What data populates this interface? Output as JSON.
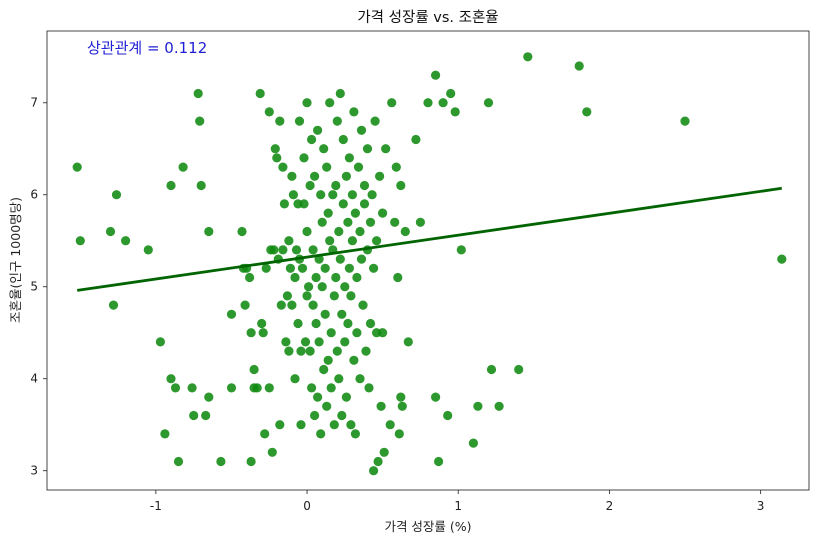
{
  "chart_data": {
    "type": "scatter",
    "title": "가격 성장률 vs. 조혼율",
    "xlabel": "가격 성장률 (%)",
    "ylabel": "조혼율(인구 1000명당)",
    "xlim": [
      -1.72,
      3.32
    ],
    "ylim": [
      2.79,
      7.78
    ],
    "xticks": [
      -1,
      0,
      1,
      2,
      3
    ],
    "yticks": [
      3,
      4,
      5,
      6,
      7
    ],
    "grid": false,
    "annotation": {
      "text": "상관관계 = 0.112",
      "color": "#1f1fd6",
      "position": "top-left"
    },
    "point_color": "#108a10",
    "trend_color": "#006400",
    "trend": {
      "x": [
        -1.52,
        3.14
      ],
      "y": [
        4.96,
        6.07
      ]
    },
    "points": [
      [
        -1.52,
        6.3
      ],
      [
        -1.5,
        5.5
      ],
      [
        -1.3,
        5.6
      ],
      [
        -1.28,
        4.8
      ],
      [
        -1.26,
        6.0
      ],
      [
        -1.2,
        5.5
      ],
      [
        -1.05,
        5.4
      ],
      [
        -0.97,
        4.4
      ],
      [
        -0.94,
        3.4
      ],
      [
        -0.9,
        4.0
      ],
      [
        -0.9,
        6.1
      ],
      [
        -0.87,
        3.9
      ],
      [
        -0.85,
        3.1
      ],
      [
        -0.82,
        6.3
      ],
      [
        -0.76,
        3.9
      ],
      [
        -0.75,
        3.6
      ],
      [
        -0.72,
        7.1
      ],
      [
        -0.71,
        6.8
      ],
      [
        -0.7,
        6.1
      ],
      [
        -0.67,
        3.6
      ],
      [
        -0.65,
        3.8
      ],
      [
        -0.65,
        5.6
      ],
      [
        -0.57,
        3.1
      ],
      [
        -0.5,
        3.9
      ],
      [
        -0.5,
        4.7
      ],
      [
        -0.43,
        5.6
      ],
      [
        -0.42,
        5.2
      ],
      [
        -0.41,
        4.8
      ],
      [
        -0.4,
        5.2
      ],
      [
        -0.38,
        5.1
      ],
      [
        -0.37,
        4.5
      ],
      [
        -0.37,
        3.1
      ],
      [
        -0.35,
        4.1
      ],
      [
        -0.35,
        3.9
      ],
      [
        -0.33,
        3.9
      ],
      [
        -0.31,
        7.1
      ],
      [
        -0.3,
        4.6
      ],
      [
        -0.29,
        4.5
      ],
      [
        -0.28,
        3.4
      ],
      [
        -0.27,
        5.2
      ],
      [
        -0.25,
        3.9
      ],
      [
        -0.25,
        6.9
      ],
      [
        -0.24,
        5.4
      ],
      [
        -0.23,
        3.2
      ],
      [
        -0.22,
        5.4
      ],
      [
        -0.21,
        6.5
      ],
      [
        -0.2,
        6.4
      ],
      [
        -0.19,
        5.3
      ],
      [
        -0.18,
        3.5
      ],
      [
        -0.18,
        6.8
      ],
      [
        -0.17,
        4.8
      ],
      [
        -0.16,
        5.4
      ],
      [
        -0.16,
        6.3
      ],
      [
        -0.15,
        5.9
      ],
      [
        -0.14,
        4.4
      ],
      [
        -0.13,
        4.9
      ],
      [
        -0.12,
        5.5
      ],
      [
        -0.12,
        4.3
      ],
      [
        -0.11,
        5.2
      ],
      [
        -0.1,
        6.2
      ],
      [
        -0.1,
        4.8
      ],
      [
        -0.09,
        6.0
      ],
      [
        -0.08,
        5.1
      ],
      [
        -0.08,
        4.0
      ],
      [
        -0.07,
        5.4
      ],
      [
        -0.06,
        5.9
      ],
      [
        -0.06,
        4.6
      ],
      [
        -0.05,
        6.8
      ],
      [
        -0.05,
        5.3
      ],
      [
        -0.04,
        4.3
      ],
      [
        -0.04,
        3.5
      ],
      [
        -0.03,
        5.2
      ],
      [
        -0.02,
        6.4
      ],
      [
        -0.02,
        5.9
      ],
      [
        -0.01,
        4.4
      ],
      [
        0.0,
        5.6
      ],
      [
        0.0,
        4.9
      ],
      [
        0.0,
        7.0
      ],
      [
        0.01,
        5.0
      ],
      [
        0.02,
        6.1
      ],
      [
        0.02,
        4.3
      ],
      [
        0.03,
        6.6
      ],
      [
        0.03,
        3.9
      ],
      [
        0.04,
        5.4
      ],
      [
        0.04,
        4.8
      ],
      [
        0.05,
        6.2
      ],
      [
        0.05,
        3.6
      ],
      [
        0.06,
        5.1
      ],
      [
        0.06,
        4.6
      ],
      [
        0.07,
        6.7
      ],
      [
        0.07,
        3.8
      ],
      [
        0.08,
        5.3
      ],
      [
        0.08,
        4.4
      ],
      [
        0.09,
        6.0
      ],
      [
        0.09,
        3.4
      ],
      [
        0.1,
        5.7
      ],
      [
        0.1,
        5.0
      ],
      [
        0.11,
        6.5
      ],
      [
        0.11,
        4.1
      ],
      [
        0.12,
        5.2
      ],
      [
        0.12,
        4.7
      ],
      [
        0.13,
        6.3
      ],
      [
        0.13,
        3.7
      ],
      [
        0.14,
        5.8
      ],
      [
        0.14,
        4.2
      ],
      [
        0.15,
        7.0
      ],
      [
        0.15,
        5.5
      ],
      [
        0.16,
        4.5
      ],
      [
        0.16,
        3.9
      ],
      [
        0.17,
        6.0
      ],
      [
        0.17,
        5.4
      ],
      [
        0.18,
        4.9
      ],
      [
        0.18,
        3.5
      ],
      [
        0.19,
        6.1
      ],
      [
        0.19,
        5.1
      ],
      [
        0.2,
        4.3
      ],
      [
        0.2,
        6.8
      ],
      [
        0.21,
        5.6
      ],
      [
        0.21,
        4.0
      ],
      [
        0.22,
        7.1
      ],
      [
        0.22,
        5.3
      ],
      [
        0.23,
        4.7
      ],
      [
        0.23,
        3.6
      ],
      [
        0.24,
        6.6
      ],
      [
        0.24,
        5.9
      ],
      [
        0.25,
        4.4
      ],
      [
        0.25,
        5.0
      ],
      [
        0.26,
        6.2
      ],
      [
        0.26,
        3.8
      ],
      [
        0.27,
        5.7
      ],
      [
        0.27,
        4.6
      ],
      [
        0.28,
        6.4
      ],
      [
        0.28,
        5.2
      ],
      [
        0.29,
        3.5
      ],
      [
        0.29,
        4.9
      ],
      [
        0.3,
        6.0
      ],
      [
        0.3,
        5.5
      ],
      [
        0.31,
        4.2
      ],
      [
        0.31,
        6.9
      ],
      [
        0.32,
        5.8
      ],
      [
        0.32,
        3.4
      ],
      [
        0.33,
        5.1
      ],
      [
        0.33,
        4.5
      ],
      [
        0.34,
        6.3
      ],
      [
        0.35,
        5.6
      ],
      [
        0.35,
        4.0
      ],
      [
        0.36,
        6.7
      ],
      [
        0.36,
        5.3
      ],
      [
        0.37,
        4.8
      ],
      [
        0.38,
        6.1
      ],
      [
        0.38,
        5.9
      ],
      [
        0.39,
        4.3
      ],
      [
        0.4,
        5.4
      ],
      [
        0.4,
        6.5
      ],
      [
        0.41,
        3.9
      ],
      [
        0.42,
        5.7
      ],
      [
        0.42,
        4.6
      ],
      [
        0.43,
        6.0
      ],
      [
        0.44,
        5.2
      ],
      [
        0.44,
        3.0
      ],
      [
        0.45,
        6.8
      ],
      [
        0.46,
        4.5
      ],
      [
        0.46,
        5.5
      ],
      [
        0.47,
        3.1
      ],
      [
        0.48,
        6.2
      ],
      [
        0.49,
        3.7
      ],
      [
        0.5,
        4.5
      ],
      [
        0.5,
        5.8
      ],
      [
        0.51,
        3.2
      ],
      [
        0.52,
        6.5
      ],
      [
        0.55,
        3.5
      ],
      [
        0.56,
        7.0
      ],
      [
        0.58,
        5.7
      ],
      [
        0.59,
        6.3
      ],
      [
        0.6,
        5.1
      ],
      [
        0.61,
        3.4
      ],
      [
        0.62,
        6.1
      ],
      [
        0.62,
        3.8
      ],
      [
        0.63,
        3.7
      ],
      [
        0.65,
        5.6
      ],
      [
        0.67,
        4.4
      ],
      [
        0.72,
        6.6
      ],
      [
        0.75,
        5.7
      ],
      [
        0.8,
        7.0
      ],
      [
        0.85,
        3.8
      ],
      [
        0.85,
        7.3
      ],
      [
        0.87,
        3.1
      ],
      [
        0.9,
        7.0
      ],
      [
        0.93,
        3.6
      ],
      [
        0.95,
        7.1
      ],
      [
        0.98,
        6.9
      ],
      [
        1.02,
        5.4
      ],
      [
        1.1,
        3.3
      ],
      [
        1.13,
        3.7
      ],
      [
        1.2,
        7.0
      ],
      [
        1.22,
        4.1
      ],
      [
        1.27,
        3.7
      ],
      [
        1.4,
        4.1
      ],
      [
        1.46,
        7.5
      ],
      [
        1.8,
        7.4
      ],
      [
        1.85,
        6.9
      ],
      [
        2.5,
        6.8
      ],
      [
        3.14,
        5.3
      ]
    ]
  }
}
